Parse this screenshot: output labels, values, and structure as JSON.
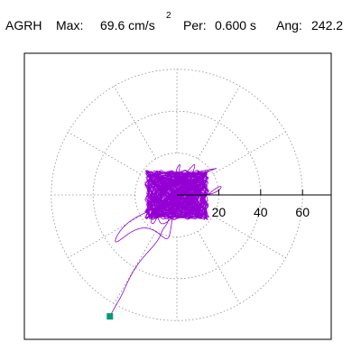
{
  "header": {
    "station": "AGRH",
    "max_label": "Max:",
    "max_value": "69.6 cm/s",
    "max_exp": "2",
    "per_label": "Per:",
    "per_value": "0.600 s",
    "ang_label": "Ang:",
    "ang_value": "242.2"
  },
  "colors": {
    "trace": "#9400d3",
    "end_marker": "#00997a",
    "grid": "#8c8c8c",
    "axis": "#000000",
    "frame": "#000000",
    "background": "#ffffff"
  },
  "chart_data": {
    "type": "polar-orbit",
    "radial_ticks": [
      20,
      40,
      60
    ],
    "radial_tick_labels": [
      "20",
      "40",
      "60"
    ],
    "radial_max": 69.6,
    "grid_rings": [
      20,
      40,
      60
    ],
    "grid_spokes_deg": [
      0,
      30,
      60,
      90,
      120,
      150,
      180,
      210,
      240,
      270,
      300,
      330
    ],
    "grid": true,
    "end_point": {
      "x": -32,
      "y": -58
    }
  }
}
